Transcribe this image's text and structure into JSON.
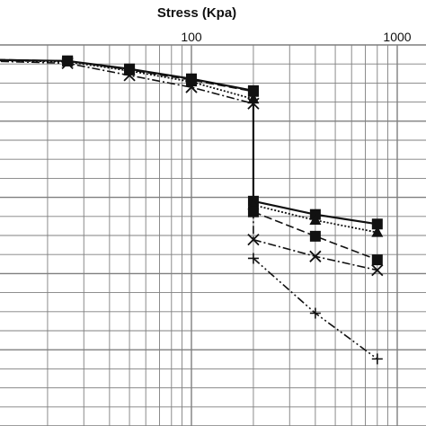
{
  "chart_data": {
    "type": "line",
    "title": "Stress (Kpa)",
    "xlabel": "",
    "ylabel": "",
    "xscale": "log",
    "xlim": [
      10,
      1000
    ],
    "x_tick_labels": [
      "100",
      "1000"
    ],
    "x_tick_values": [
      100,
      1000
    ],
    "ylim": [
      0,
      1
    ],
    "grid": true,
    "legend": "none",
    "series": [
      {
        "marker": "square",
        "line": "solid",
        "segments": [
          [
            [
              10,
              0.961
            ],
            [
              25,
              0.958
            ],
            [
              50,
              0.937
            ],
            [
              100,
              0.911
            ],
            [
              200,
              0.88
            ]
          ],
          [
            [
              200,
              0.88
            ],
            [
              200,
              0.59
            ]
          ],
          [
            [
              200,
              0.59
            ],
            [
              400,
              0.555
            ],
            [
              800,
              0.53
            ]
          ]
        ]
      },
      {
        "marker": "triangle",
        "line": "dotted",
        "segments": [
          [
            [
              10,
              0.96
            ],
            [
              25,
              0.956
            ],
            [
              50,
              0.932
            ],
            [
              100,
              0.903
            ],
            [
              200,
              0.858
            ]
          ],
          [
            [
              200,
              0.858
            ],
            [
              200,
              0.58
            ]
          ],
          [
            [
              200,
              0.58
            ],
            [
              400,
              0.54
            ],
            [
              800,
              0.508
            ]
          ]
        ]
      },
      {
        "marker": "square",
        "line": "dashed",
        "segments": [
          [
            [
              10,
              0.962
            ],
            [
              25,
              0.958
            ],
            [
              50,
              0.935
            ],
            [
              100,
              0.908
            ],
            [
              200,
              0.878
            ]
          ],
          [
            [
              200,
              0.562
            ],
            [
              400,
              0.498
            ],
            [
              800,
              0.436
            ]
          ]
        ]
      },
      {
        "marker": "x",
        "line": "dash-dot",
        "segments": [
          [
            [
              10,
              0.958
            ],
            [
              25,
              0.952
            ],
            [
              50,
              0.92
            ],
            [
              100,
              0.889
            ],
            [
              200,
              0.846
            ]
          ],
          [
            [
              200,
              0.846
            ],
            [
              200,
              0.489
            ]
          ],
          [
            [
              200,
              0.489
            ],
            [
              400,
              0.445
            ],
            [
              800,
              0.409
            ]
          ]
        ]
      },
      {
        "marker": "plus",
        "line": "dash-dot-dot",
        "segments": [
          [
            [
              200,
              0.44
            ],
            [
              400,
              0.296
            ],
            [
              800,
              0.176
            ]
          ]
        ]
      }
    ]
  }
}
